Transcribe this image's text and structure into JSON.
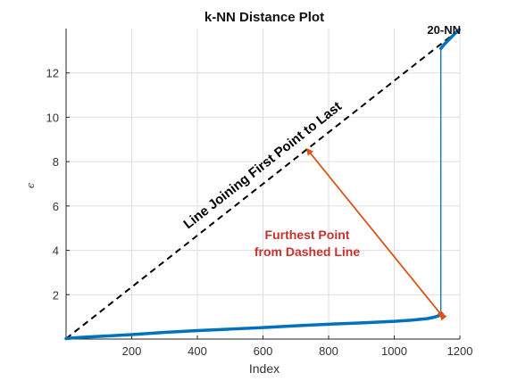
{
  "chart_data": {
    "type": "line",
    "title": "k-NN Distance Plot",
    "xlabel": "Index",
    "ylabel": "ϵ",
    "xlim": [
      0,
      1200
    ],
    "ylim": [
      0,
      14
    ],
    "xticks": [
      200,
      400,
      600,
      800,
      1000,
      1200
    ],
    "yticks": [
      2,
      4,
      6,
      8,
      10,
      12
    ],
    "grid": true,
    "series": [
      {
        "color": "#0072bd",
        "x": [
          0,
          20,
          50,
          100,
          200,
          300,
          400,
          500,
          600,
          700,
          800,
          900,
          1000,
          1050,
          1100,
          1120,
          1135,
          1140,
          1142,
          1142,
          1150,
          1160,
          1170,
          1180,
          1190,
          1198
        ],
        "y": [
          0.02,
          0.05,
          0.08,
          0.12,
          0.2,
          0.3,
          0.38,
          0.45,
          0.52,
          0.6,
          0.67,
          0.73,
          0.8,
          0.85,
          0.92,
          0.98,
          1.05,
          1.1,
          1.12,
          13.1,
          13.25,
          13.4,
          13.55,
          13.7,
          13.85,
          13.95
        ]
      }
    ],
    "reference_line": {
      "x": [
        0,
        1198
      ],
      "y": [
        0.02,
        13.95
      ],
      "style": "dashed",
      "color": "#000000"
    },
    "furthest_point": {
      "x": 1142,
      "y": 1.12,
      "color": "#d95319"
    },
    "arrow": {
      "from": {
        "x": 1142,
        "y": 1.12
      },
      "to": {
        "x": 735,
        "y": 8.55
      },
      "color": "#d95319"
    },
    "annotations": {
      "diagonal_label": "Line Joining First Point to Last",
      "furthest_line1": "Furthest Point",
      "furthest_line2": "from Dashed Line",
      "knn_label": "20-NN"
    }
  }
}
